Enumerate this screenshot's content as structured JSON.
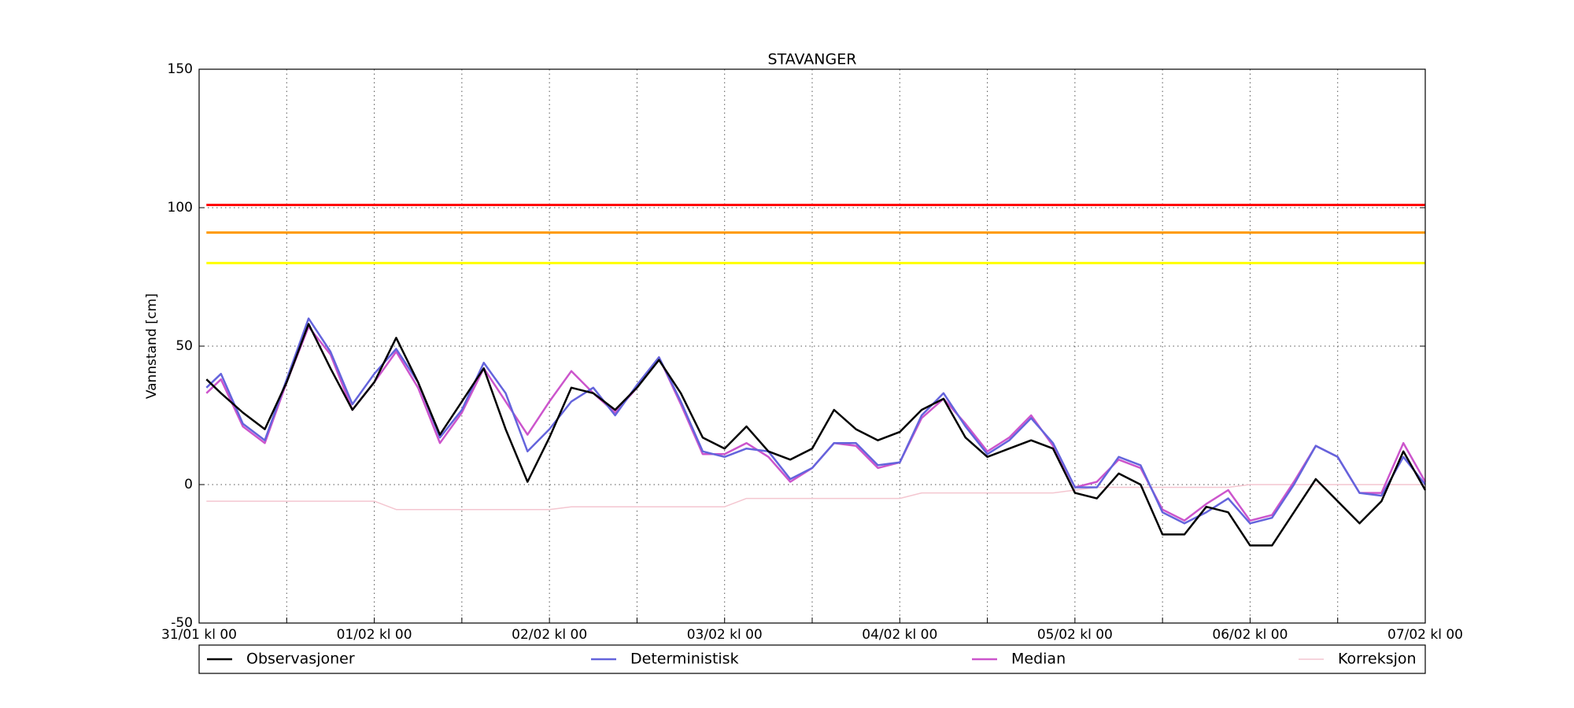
{
  "chart_data": {
    "type": "line",
    "title": "STAVANGER",
    "ylabel": "Vannstand [cm]",
    "xlim": [
      0,
      168
    ],
    "xticks": [
      {
        "value": 0,
        "label": "31/01 kl 00"
      },
      {
        "value": 24,
        "label": "01/02 kl 00"
      },
      {
        "value": 48,
        "label": "02/02 kl 00"
      },
      {
        "value": 72,
        "label": "03/02 kl 00"
      },
      {
        "value": 96,
        "label": "04/02 kl 00"
      },
      {
        "value": 120,
        "label": "05/02 kl 00"
      },
      {
        "value": 144,
        "label": "06/02 kl 00"
      },
      {
        "value": 168,
        "label": "07/02 kl 00"
      }
    ],
    "xminor_ticks": [
      12,
      36,
      60,
      84,
      108,
      132,
      156
    ],
    "ylim": [
      -50,
      150
    ],
    "yticks": [
      -50,
      0,
      50,
      100,
      150
    ],
    "grid": true,
    "threshold_lines": [
      {
        "value": 101,
        "color": "#ff0000"
      },
      {
        "value": 91,
        "color": "#ff9900"
      },
      {
        "value": 80,
        "color": "#ffff00"
      }
    ],
    "x": [
      1,
      3,
      6,
      9,
      12,
      15,
      18,
      21,
      24,
      27,
      30,
      33,
      36,
      39,
      42,
      45,
      48,
      51,
      54,
      57,
      60,
      63,
      66,
      69,
      72,
      75,
      78,
      81,
      84,
      87,
      90,
      93,
      96,
      99,
      102,
      105,
      108,
      111,
      114,
      117,
      120,
      123,
      126,
      129,
      132,
      135,
      138,
      141,
      144,
      147,
      150,
      153,
      156,
      159,
      162,
      165,
      168
    ],
    "series": [
      {
        "name": "Observasjoner",
        "color": "#000000",
        "values": [
          38,
          33,
          26,
          20,
          37,
          58,
          42,
          27,
          37,
          53,
          37,
          18,
          30,
          42,
          20,
          1,
          17,
          35,
          33,
          27,
          35,
          45,
          33,
          17,
          13,
          21,
          12,
          9,
          13,
          27,
          20,
          16,
          19,
          27,
          31,
          17,
          10,
          13,
          16,
          13,
          -3,
          -5,
          4,
          0,
          -18,
          -18,
          -8,
          -10,
          -22,
          -22,
          -10,
          2,
          -6,
          -14,
          -6,
          12,
          -2
        ]
      },
      {
        "name": "Deterministisk",
        "color": "#6464dc",
        "values": [
          35,
          40,
          22,
          16,
          38,
          60,
          48,
          29,
          40,
          49,
          37,
          17,
          27,
          44,
          33,
          12,
          20,
          30,
          35,
          25,
          36,
          46,
          30,
          12,
          10,
          13,
          12,
          2,
          6,
          15,
          15,
          7,
          8,
          25,
          33,
          21,
          11,
          16,
          24,
          15,
          -1,
          -1,
          10,
          7,
          -10,
          -14,
          -10,
          -5,
          -14,
          -12,
          0,
          14,
          10,
          -3,
          -4,
          10,
          0
        ]
      },
      {
        "name": "Median",
        "color": "#cc55cc",
        "values": [
          33,
          38,
          21,
          15,
          37,
          57,
          47,
          27,
          37,
          48,
          35,
          15,
          26,
          42,
          30,
          18,
          30,
          41,
          33,
          26,
          35,
          46,
          29,
          11,
          11,
          15,
          10,
          1,
          6,
          15,
          14,
          6,
          8,
          24,
          31,
          22,
          12,
          17,
          25,
          14,
          -1,
          1,
          9,
          6,
          -9,
          -13,
          -7,
          -2,
          -13,
          -11,
          1,
          14,
          10,
          -3,
          -3,
          15,
          1
        ]
      },
      {
        "name": "Korreksjon",
        "color": "#f4c6d0",
        "values": [
          -6,
          -6,
          -6,
          -6,
          -6,
          -6,
          -6,
          -6,
          -6,
          -9,
          -9,
          -9,
          -9,
          -9,
          -9,
          -9,
          -9,
          -8,
          -8,
          -8,
          -8,
          -8,
          -8,
          -8,
          -8,
          -5,
          -5,
          -5,
          -5,
          -5,
          -5,
          -5,
          -5,
          -3,
          -3,
          -3,
          -3,
          -3,
          -3,
          -3,
          -2,
          -1,
          -1,
          -1,
          -1,
          -1,
          -1,
          -1,
          0,
          0,
          0,
          0,
          0,
          0,
          0,
          0,
          0
        ]
      }
    ]
  }
}
